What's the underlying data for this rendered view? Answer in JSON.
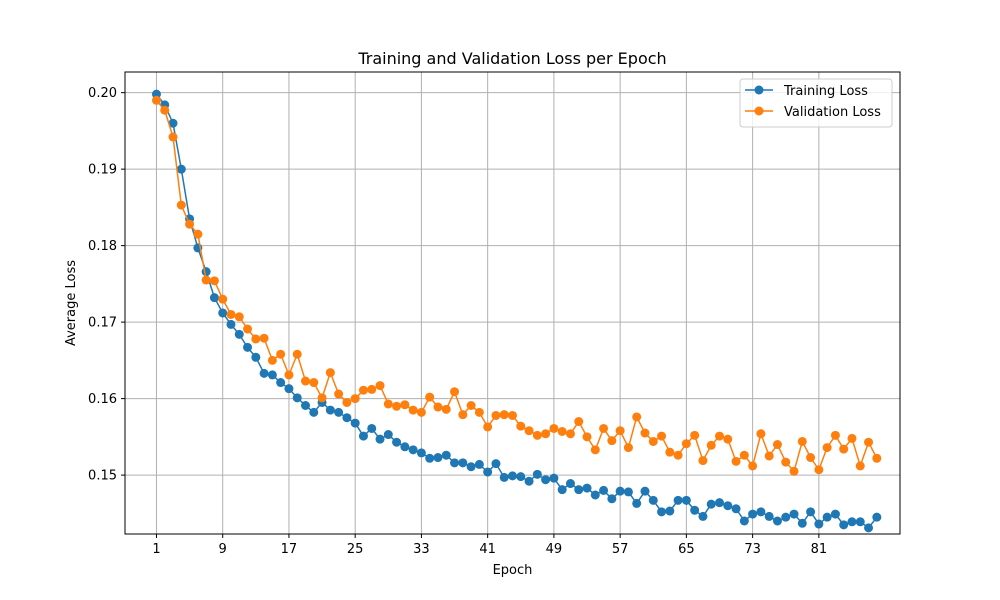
{
  "chart_data": {
    "type": "line",
    "title": "Training and Validation Loss per Epoch",
    "xlabel": "Epoch",
    "ylabel": "Average Loss",
    "xlim": [
      -2.8,
      90.8
    ],
    "ylim": [
      0.1423,
      0.2027
    ],
    "xticks": [
      1,
      9,
      17,
      25,
      33,
      41,
      49,
      57,
      65,
      73,
      81
    ],
    "yticks": [
      0.15,
      0.16,
      0.17,
      0.18,
      0.19,
      0.2
    ],
    "ytick_labels": [
      "0.15",
      "0.16",
      "0.17",
      "0.18",
      "0.19",
      "0.20"
    ],
    "grid": true,
    "legend_position": "top-right",
    "series": [
      {
        "name": "Training Loss",
        "color": "#1f77b4",
        "x": [
          1,
          2,
          3,
          4,
          5,
          6,
          7,
          8,
          9,
          10,
          11,
          12,
          13,
          14,
          15,
          16,
          17,
          18,
          19,
          20,
          21,
          22,
          23,
          24,
          25,
          26,
          27,
          28,
          29,
          30,
          31,
          32,
          33,
          34,
          35,
          36,
          37,
          38,
          39,
          40,
          41,
          42,
          43,
          44,
          45,
          46,
          47,
          48,
          49,
          50,
          51,
          52,
          53,
          54,
          55,
          56,
          57,
          58,
          59,
          60,
          61,
          62,
          63,
          64,
          65,
          66,
          67,
          68,
          69,
          70,
          71,
          72,
          73,
          74,
          75,
          76,
          77,
          78,
          79,
          80,
          81,
          82,
          83,
          84,
          85,
          86,
          87,
          88
        ],
        "values": [
          0.1998,
          0.1984,
          0.196,
          0.19,
          0.1835,
          0.1797,
          0.1766,
          0.1732,
          0.1712,
          0.1697,
          0.1684,
          0.1667,
          0.1654,
          0.1633,
          0.1631,
          0.1621,
          0.1613,
          0.1601,
          0.1591,
          0.1582,
          0.1595,
          0.1585,
          0.1582,
          0.1575,
          0.1568,
          0.1551,
          0.1561,
          0.1547,
          0.1553,
          0.1543,
          0.1537,
          0.1533,
          0.1529,
          0.1522,
          0.1523,
          0.1526,
          0.1516,
          0.1516,
          0.1511,
          0.1514,
          0.1504,
          0.1515,
          0.1497,
          0.1499,
          0.1498,
          0.1492,
          0.1501,
          0.1494,
          0.1496,
          0.1481,
          0.1489,
          0.1481,
          0.1483,
          0.1474,
          0.148,
          0.1469,
          0.1479,
          0.1478,
          0.1463,
          0.1479,
          0.1467,
          0.1452,
          0.1453,
          0.1467,
          0.1467,
          0.1454,
          0.1446,
          0.1462,
          0.1464,
          0.146,
          0.1456,
          0.144,
          0.1449,
          0.1452,
          0.1446,
          0.144,
          0.1445,
          0.1449,
          0.1437,
          0.1452,
          0.1436,
          0.1445,
          0.1449,
          0.1435,
          0.1439,
          0.1439,
          0.1431,
          0.1445
        ]
      },
      {
        "name": "Validation Loss",
        "color": "#ff7f0e",
        "x": [
          1,
          2,
          3,
          4,
          5,
          6,
          7,
          8,
          9,
          10,
          11,
          12,
          13,
          14,
          15,
          16,
          17,
          18,
          19,
          20,
          21,
          22,
          23,
          24,
          25,
          26,
          27,
          28,
          29,
          30,
          31,
          32,
          33,
          34,
          35,
          36,
          37,
          38,
          39,
          40,
          41,
          42,
          43,
          44,
          45,
          46,
          47,
          48,
          49,
          50,
          51,
          52,
          53,
          54,
          55,
          56,
          57,
          58,
          59,
          60,
          61,
          62,
          63,
          64,
          65,
          66,
          67,
          68,
          69,
          70,
          71,
          72,
          73,
          74,
          75,
          76,
          77,
          78,
          79,
          80,
          81,
          82,
          83,
          84,
          85,
          86,
          87,
          88
        ],
        "values": [
          0.199,
          0.1977,
          0.1942,
          0.1853,
          0.1828,
          0.1815,
          0.1755,
          0.1754,
          0.173,
          0.171,
          0.1707,
          0.1691,
          0.1678,
          0.1679,
          0.165,
          0.1658,
          0.1631,
          0.1658,
          0.1623,
          0.1621,
          0.1601,
          0.1634,
          0.1606,
          0.1595,
          0.16,
          0.1611,
          0.1612,
          0.1617,
          0.1593,
          0.159,
          0.1592,
          0.1585,
          0.1582,
          0.1602,
          0.1589,
          0.1586,
          0.1609,
          0.1579,
          0.1591,
          0.1582,
          0.1563,
          0.1578,
          0.1579,
          0.1578,
          0.1564,
          0.1558,
          0.1552,
          0.1554,
          0.1561,
          0.1557,
          0.1554,
          0.157,
          0.155,
          0.1533,
          0.1561,
          0.1545,
          0.1558,
          0.1536,
          0.1576,
          0.1555,
          0.1544,
          0.1551,
          0.153,
          0.1526,
          0.1541,
          0.1552,
          0.1519,
          0.1539,
          0.1551,
          0.1547,
          0.1518,
          0.1526,
          0.1512,
          0.1554,
          0.1525,
          0.154,
          0.1517,
          0.1505,
          0.1544,
          0.1523,
          0.1507,
          0.1536,
          0.1552,
          0.1534,
          0.1548,
          0.1512,
          0.1543,
          0.1522
        ]
      }
    ]
  }
}
